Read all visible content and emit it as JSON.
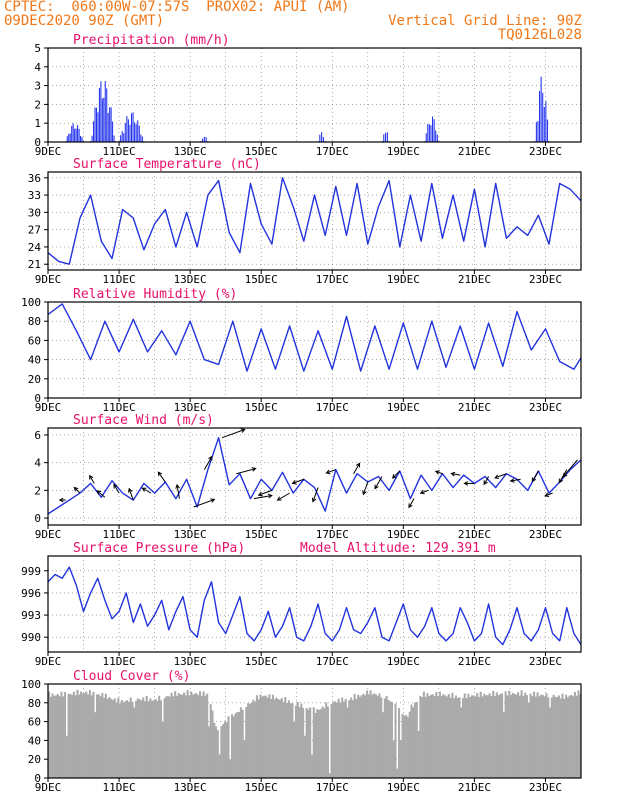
{
  "header": {
    "line1_left": "CPTEC:  060:00W-07:57S  PROX02: APUI (AM)",
    "line2_left": "09DEC2020 90Z (GMT)",
    "line1_right": "Vertical Grid Line: 90Z",
    "line2_right": "TQ0126L028"
  },
  "x_ticks": [
    "9DEC",
    "11DEC",
    "13DEC",
    "15DEC",
    "17DEC",
    "19DEC",
    "21DEC",
    "23DEC"
  ],
  "x_range_days": [
    9,
    24
  ],
  "colors": {
    "title": "#e8106a",
    "header": "#f07818",
    "line": "#2233dd",
    "bar": "#2233ee",
    "cloud": "#aaaaaa"
  },
  "chart_data": [
    {
      "id": "precip",
      "type": "bar",
      "title": "Precipitation  (mm/h)",
      "ylim": [
        0,
        5
      ],
      "yticks": [
        0,
        1,
        2,
        3,
        4,
        5
      ],
      "bursts": [
        {
          "x": [
            9.5,
            10.0
          ],
          "peak": 1.0
        },
        {
          "x": [
            10.2,
            10.9
          ],
          "peak": 3.4
        },
        {
          "x": [
            11.0,
            11.7
          ],
          "peak": 1.6
        },
        {
          "x": [
            13.3,
            13.5
          ],
          "peak": 0.3
        },
        {
          "x": [
            16.6,
            16.8
          ],
          "peak": 0.5
        },
        {
          "x": [
            18.4,
            18.6
          ],
          "peak": 0.7
        },
        {
          "x": [
            19.6,
            20.0
          ],
          "peak": 1.4
        },
        {
          "x": [
            22.7,
            23.1
          ],
          "peak": 3.5
        }
      ]
    },
    {
      "id": "temp",
      "type": "line",
      "title": "Surface Temperature (nC)",
      "ylim": [
        20,
        37
      ],
      "yticks": [
        21,
        24,
        27,
        30,
        33,
        36
      ],
      "x": [
        9.0,
        9.3,
        9.6,
        9.9,
        10.2,
        10.5,
        10.8,
        11.1,
        11.4,
        11.7,
        12.0,
        12.3,
        12.6,
        12.9,
        13.2,
        13.5,
        13.8,
        14.1,
        14.4,
        14.7,
        15.0,
        15.3,
        15.6,
        15.9,
        16.2,
        16.5,
        16.8,
        17.1,
        17.4,
        17.7,
        18.0,
        18.3,
        18.6,
        18.9,
        19.2,
        19.5,
        19.8,
        20.1,
        20.4,
        20.7,
        21.0,
        21.3,
        21.6,
        21.9,
        22.2,
        22.5,
        22.8,
        23.1,
        23.4,
        23.7,
        24.0
      ],
      "y": [
        23.0,
        21.5,
        21.0,
        29.0,
        33.0,
        25.0,
        22.0,
        30.5,
        29.0,
        23.5,
        28.0,
        30.5,
        24.0,
        30.0,
        24.0,
        33.0,
        35.5,
        26.5,
        23.0,
        35.0,
        28.0,
        24.5,
        36.0,
        31.0,
        25.0,
        33.0,
        26.0,
        34.5,
        26.0,
        35.0,
        24.5,
        31.0,
        35.5,
        24.0,
        33.0,
        25.0,
        35.0,
        25.5,
        33.0,
        25.0,
        34.0,
        24.0,
        35.0,
        25.5,
        27.5,
        26.0,
        29.5,
        24.5,
        35.0,
        34.0,
        32.0
      ]
    },
    {
      "id": "rh",
      "type": "line",
      "title": "Relative Humidity (%)",
      "ylim": [
        0,
        100
      ],
      "yticks": [
        0,
        20,
        40,
        60,
        80,
        100
      ],
      "x": [
        9.0,
        9.4,
        9.8,
        10.2,
        10.6,
        11.0,
        11.4,
        11.8,
        12.2,
        12.6,
        13.0,
        13.4,
        13.8,
        14.2,
        14.6,
        15.0,
        15.4,
        15.8,
        16.2,
        16.6,
        17.0,
        17.4,
        17.8,
        18.2,
        18.6,
        19.0,
        19.4,
        19.8,
        20.2,
        20.6,
        21.0,
        21.4,
        21.8,
        22.2,
        22.6,
        23.0,
        23.4,
        23.8,
        24.0
      ],
      "y": [
        87.0,
        98.0,
        70.0,
        40.0,
        80.0,
        48.0,
        82.0,
        48.0,
        70.0,
        45.0,
        80.0,
        40.0,
        35.0,
        80.0,
        28.0,
        72.0,
        30.0,
        75.0,
        28.0,
        70.0,
        30.0,
        85.0,
        28.0,
        75.0,
        30.0,
        78.0,
        30.0,
        80.0,
        32.0,
        75.0,
        30.0,
        78.0,
        33.0,
        90.0,
        50.0,
        72.0,
        38.0,
        30.0,
        42.0
      ]
    },
    {
      "id": "wind",
      "type": "line",
      "title": "Surface Wind (m/s)",
      "ylim": [
        -0.5,
        6.5
      ],
      "yticks": [
        0,
        2,
        4,
        6
      ],
      "x": [
        9.0,
        9.3,
        9.6,
        9.9,
        10.2,
        10.5,
        10.8,
        11.1,
        11.4,
        11.7,
        12.0,
        12.3,
        12.6,
        12.9,
        13.2,
        13.5,
        13.8,
        14.1,
        14.4,
        14.7,
        15.0,
        15.3,
        15.6,
        15.9,
        16.2,
        16.5,
        16.8,
        17.1,
        17.4,
        17.7,
        18.0,
        18.3,
        18.6,
        18.9,
        19.2,
        19.5,
        19.8,
        20.1,
        20.4,
        20.7,
        21.0,
        21.3,
        21.6,
        21.9,
        22.2,
        22.5,
        22.8,
        23.1,
        23.4,
        23.7,
        24.0
      ],
      "y": [
        0.3,
        0.8,
        1.3,
        1.8,
        2.5,
        1.5,
        2.7,
        1.8,
        1.3,
        2.5,
        1.8,
        2.6,
        1.4,
        2.8,
        0.8,
        3.5,
        5.8,
        2.4,
        3.2,
        1.4,
        2.8,
        2.0,
        3.3,
        1.8,
        2.8,
        2.2,
        0.5,
        3.5,
        1.8,
        3.2,
        2.6,
        3.0,
        2.0,
        3.4,
        1.4,
        3.1,
        2.0,
        3.2,
        2.2,
        3.1,
        2.5,
        3.0,
        2.2,
        3.2,
        2.8,
        2.0,
        3.4,
        1.8,
        2.6,
        3.5,
        4.2
      ],
      "vectors": [
        {
          "x": 9.5,
          "s": 0.6,
          "a": 180
        },
        {
          "x": 9.9,
          "s": 0.8,
          "a": 135
        },
        {
          "x": 10.3,
          "s": 0.9,
          "a": 120
        },
        {
          "x": 10.6,
          "s": 1.0,
          "a": 140
        },
        {
          "x": 11.0,
          "s": 1.0,
          "a": 120
        },
        {
          "x": 11.4,
          "s": 1.2,
          "a": 110
        },
        {
          "x": 11.9,
          "s": 1.0,
          "a": 150
        },
        {
          "x": 12.3,
          "s": 1.2,
          "a": 125
        },
        {
          "x": 12.7,
          "s": 1.4,
          "a": 100
        },
        {
          "x": 13.1,
          "s": 2.2,
          "a": 20
        },
        {
          "x": 13.4,
          "s": 1.5,
          "a": 60
        },
        {
          "x": 13.9,
          "s": 2.4,
          "a": 20
        },
        {
          "x": 14.3,
          "s": 2.0,
          "a": 15
        },
        {
          "x": 14.8,
          "s": 1.8,
          "a": 10
        },
        {
          "x": 15.3,
          "s": 1.4,
          "a": 200
        },
        {
          "x": 15.8,
          "s": 1.4,
          "a": 210
        },
        {
          "x": 16.2,
          "s": 1.2,
          "a": 200
        },
        {
          "x": 16.6,
          "s": 1.5,
          "a": 250
        },
        {
          "x": 17.1,
          "s": 1.0,
          "a": 200
        },
        {
          "x": 17.6,
          "s": 1.2,
          "a": 60
        },
        {
          "x": 18.0,
          "s": 1.3,
          "a": 250
        },
        {
          "x": 18.4,
          "s": 1.4,
          "a": 240
        },
        {
          "x": 18.9,
          "s": 1.0,
          "a": 225
        },
        {
          "x": 19.3,
          "s": 1.0,
          "a": 240
        },
        {
          "x": 19.7,
          "s": 0.8,
          "a": 200
        },
        {
          "x": 20.1,
          "s": 0.7,
          "a": 160
        },
        {
          "x": 20.6,
          "s": 0.9,
          "a": 170
        },
        {
          "x": 21.0,
          "s": 1.0,
          "a": 180
        },
        {
          "x": 21.4,
          "s": 0.9,
          "a": 240
        },
        {
          "x": 21.9,
          "s": 1.2,
          "a": 200
        },
        {
          "x": 22.3,
          "s": 1.0,
          "a": 190
        },
        {
          "x": 22.8,
          "s": 1.2,
          "a": 240
        },
        {
          "x": 23.2,
          "s": 0.8,
          "a": 200
        },
        {
          "x": 23.6,
          "s": 1.5,
          "a": 240
        },
        {
          "x": 23.9,
          "s": 2.2,
          "a": 230
        }
      ]
    },
    {
      "id": "pres",
      "type": "line",
      "title": "Surface Pressure (hPa)",
      "subtitle": "Model Altitude: 129.391  m",
      "ylim": [
        988,
        1001
      ],
      "yticks": [
        990,
        993,
        996,
        999
      ],
      "x": [
        9.0,
        9.2,
        9.4,
        9.6,
        9.8,
        10.0,
        10.2,
        10.4,
        10.6,
        10.8,
        11.0,
        11.2,
        11.4,
        11.6,
        11.8,
        12.0,
        12.2,
        12.4,
        12.6,
        12.8,
        13.0,
        13.2,
        13.4,
        13.6,
        13.8,
        14.0,
        14.2,
        14.4,
        14.6,
        14.8,
        15.0,
        15.2,
        15.4,
        15.6,
        15.8,
        16.0,
        16.2,
        16.4,
        16.6,
        16.8,
        17.0,
        17.2,
        17.4,
        17.6,
        17.8,
        18.0,
        18.2,
        18.4,
        18.6,
        18.8,
        19.0,
        19.2,
        19.4,
        19.6,
        19.8,
        20.0,
        20.2,
        20.4,
        20.6,
        20.8,
        21.0,
        21.2,
        21.4,
        21.6,
        21.8,
        22.0,
        22.2,
        22.4,
        22.6,
        22.8,
        23.0,
        23.2,
        23.4,
        23.6,
        23.8,
        24.0
      ],
      "y": [
        997.5,
        998.5,
        998.0,
        999.5,
        997.0,
        993.5,
        996.0,
        998.0,
        995.0,
        992.5,
        993.5,
        996.0,
        992.0,
        994.5,
        991.5,
        993.0,
        995.0,
        991.0,
        993.5,
        995.5,
        991.0,
        990.0,
        995.0,
        997.5,
        992.0,
        990.5,
        993.0,
        995.5,
        990.5,
        989.5,
        991.0,
        993.5,
        990.0,
        991.5,
        994.0,
        990.0,
        989.5,
        991.5,
        994.5,
        990.5,
        989.5,
        991.0,
        994.0,
        991.0,
        990.5,
        992.0,
        994.0,
        990.0,
        989.5,
        992.0,
        994.5,
        991.0,
        990.0,
        991.5,
        994.0,
        990.5,
        989.5,
        990.5,
        994.0,
        992.0,
        989.5,
        990.5,
        994.5,
        990.0,
        989.0,
        991.0,
        994.0,
        990.5,
        989.5,
        991.0,
        994.0,
        990.5,
        989.5,
        994.0,
        990.5,
        989.0
      ]
    },
    {
      "id": "cloud",
      "type": "area",
      "title": "Cloud Cover (%)",
      "ylim": [
        0,
        100
      ],
      "yticks": [
        0,
        20,
        40,
        60,
        80,
        100
      ],
      "base": [
        [
          9.0,
          92
        ],
        [
          9.5,
          93
        ],
        [
          10.0,
          95
        ],
        [
          10.5,
          92
        ],
        [
          11.0,
          85
        ],
        [
          11.5,
          88
        ],
        [
          12.0,
          87
        ],
        [
          12.5,
          93
        ],
        [
          13.0,
          94
        ],
        [
          13.5,
          93
        ],
        [
          13.7,
          55
        ],
        [
          14.0,
          65
        ],
        [
          14.5,
          80
        ],
        [
          15.0,
          92
        ],
        [
          15.5,
          88
        ],
        [
          16.0,
          82
        ],
        [
          16.5,
          75
        ],
        [
          17.0,
          85
        ],
        [
          17.5,
          88
        ],
        [
          18.0,
          95
        ],
        [
          18.5,
          90
        ],
        [
          19.0,
          70
        ],
        [
          19.5,
          92
        ],
        [
          20.0,
          93
        ],
        [
          20.5,
          90
        ],
        [
          21.0,
          92
        ],
        [
          21.5,
          93
        ],
        [
          22.0,
          94
        ],
        [
          22.5,
          93
        ],
        [
          23.0,
          92
        ],
        [
          23.5,
          90
        ],
        [
          24.0,
          95
        ]
      ],
      "dips": [
        {
          "x": 9.5,
          "v": 45
        },
        {
          "x": 10.3,
          "v": 70
        },
        {
          "x": 11.4,
          "v": 75
        },
        {
          "x": 12.2,
          "v": 60
        },
        {
          "x": 13.5,
          "v": 55
        },
        {
          "x": 13.8,
          "v": 25
        },
        {
          "x": 14.1,
          "v": 20
        },
        {
          "x": 14.5,
          "v": 40
        },
        {
          "x": 15.9,
          "v": 60
        },
        {
          "x": 16.2,
          "v": 45
        },
        {
          "x": 16.4,
          "v": 25
        },
        {
          "x": 16.9,
          "v": 5
        },
        {
          "x": 17.4,
          "v": 75
        },
        {
          "x": 18.4,
          "v": 70
        },
        {
          "x": 18.7,
          "v": 40
        },
        {
          "x": 18.8,
          "v": 10
        },
        {
          "x": 18.9,
          "v": 40
        },
        {
          "x": 19.1,
          "v": 65
        },
        {
          "x": 19.4,
          "v": 50
        },
        {
          "x": 20.6,
          "v": 75
        },
        {
          "x": 21.8,
          "v": 70
        },
        {
          "x": 22.5,
          "v": 80
        },
        {
          "x": 23.1,
          "v": 75
        }
      ]
    }
  ]
}
